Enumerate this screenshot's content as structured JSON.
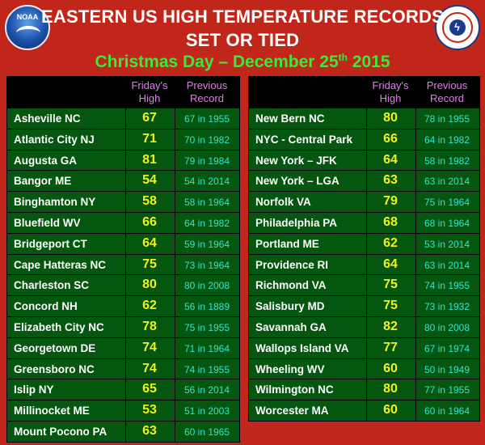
{
  "header": {
    "noaa_logo_text": "NOAA",
    "title_line1": "EASTERN US HIGH TEMPERATURE RECORDS",
    "title_line2": "SET OR TIED",
    "subtitle_pre": "Christmas Day – December 25",
    "subtitle_sup": "th",
    "subtitle_post": " 2015"
  },
  "columns": {
    "fridays_high_line1": "Friday's",
    "fridays_high_line2": "High",
    "previous_record_line1": "Previous",
    "previous_record_line2": "Record"
  },
  "left_table": [
    {
      "city": "Asheville NC",
      "high": "67",
      "record": "67 in 1955"
    },
    {
      "city": "Atlantic City NJ",
      "high": "71",
      "record": "70 in 1982"
    },
    {
      "city": "Augusta GA",
      "high": "81",
      "record": "79 in 1984"
    },
    {
      "city": "Bangor ME",
      "high": "54",
      "record": "54 in 2014"
    },
    {
      "city": "Binghamton NY",
      "high": "58",
      "record": "58 in 1964"
    },
    {
      "city": "Bluefield WV",
      "high": "66",
      "record": "64 in 1982"
    },
    {
      "city": "Bridgeport CT",
      "high": "64",
      "record": "59 in 1964"
    },
    {
      "city": "Cape Hatteras NC",
      "high": "75",
      "record": "73 in 1964"
    },
    {
      "city": "Charleston SC",
      "high": "80",
      "record": "80 in 2008"
    },
    {
      "city": "Concord NH",
      "high": "62",
      "record": "56 in 1889"
    },
    {
      "city": "Elizabeth City NC",
      "high": "78",
      "record": "75 in 1955"
    },
    {
      "city": "Georgetown DE",
      "high": "74",
      "record": "71 in 1964"
    },
    {
      "city": "Greensboro NC",
      "high": "74",
      "record": "74 in 1955"
    },
    {
      "city": "Islip NY",
      "high": "65",
      "record": "56 in 2014"
    },
    {
      "city": "Millinocket ME",
      "high": "53",
      "record": "51 in 2003"
    },
    {
      "city": "Mount Pocono PA",
      "high": "63",
      "record": "60 in 1965"
    }
  ],
  "right_table": [
    {
      "city": "New Bern NC",
      "high": "80",
      "record": "78 in 1955"
    },
    {
      "city": "NYC - Central Park",
      "high": "66",
      "record": "64 in 1982"
    },
    {
      "city": "New  York – JFK",
      "high": "64",
      "record": "58 in 1982"
    },
    {
      "city": "New  York – LGA",
      "high": "63",
      "record": "63 in 2014"
    },
    {
      "city": "Norfolk VA",
      "high": "79",
      "record": "75 in 1964"
    },
    {
      "city": "Philadelphia PA",
      "high": "68",
      "record": "68 in 1964"
    },
    {
      "city": "Portland ME",
      "high": "62",
      "record": "53 in 2014"
    },
    {
      "city": "Providence RI",
      "high": "64",
      "record": "63 in 2014"
    },
    {
      "city": "Richmond VA",
      "high": "75",
      "record": "74 in 1955"
    },
    {
      "city": "Salisbury MD",
      "high": "75",
      "record": "73 in 1932"
    },
    {
      "city": "Savannah GA",
      "high": "82",
      "record": "80 in 2008"
    },
    {
      "city": "Wallops Island VA",
      "high": "77",
      "record": "67 in 1974"
    },
    {
      "city": "Wheeling WV",
      "high": "60",
      "record": "50 in 1949"
    },
    {
      "city": "Wilmington NC",
      "high": "80",
      "record": "77 in 1955"
    },
    {
      "city": "Worcester MA",
      "high": "60",
      "record": "60 in 1964"
    }
  ],
  "colors": {
    "background": "#c0271a",
    "table_green": "#05560f",
    "high_yellow": "#f2f21a",
    "record_cyan": "#2ee6d0",
    "header_pink": "#e07ee8",
    "subtitle_green": "#3de83d"
  },
  "icons": {
    "noaa": "noaa-logo",
    "nws": "nws-logo"
  }
}
